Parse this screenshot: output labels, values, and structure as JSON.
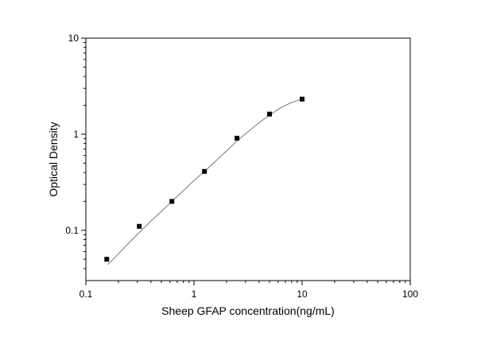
{
  "chart_data": {
    "type": "scatter",
    "title": "",
    "xlabel": "Sheep GFAP concentration(ng/mL)",
    "ylabel": "Optical Density",
    "xscale": "log",
    "yscale": "log",
    "xlim": [
      0.1,
      100
    ],
    "ylim": [
      0.03,
      10
    ],
    "x_ticks": [
      {
        "value": 0.1,
        "label": "0.1"
      },
      {
        "value": 1,
        "label": "1"
      },
      {
        "value": 10,
        "label": "10"
      },
      {
        "value": 100,
        "label": "100"
      }
    ],
    "y_ticks": [
      {
        "value": 0.1,
        "label": "0.1"
      },
      {
        "value": 1,
        "label": "1"
      },
      {
        "value": 10,
        "label": "10"
      }
    ],
    "grid": false,
    "legend": "none",
    "series": [
      {
        "marker": "square",
        "color": "#000000",
        "points": [
          {
            "x": 0.156,
            "y": 0.05
          },
          {
            "x": 0.312,
            "y": 0.11
          },
          {
            "x": 0.625,
            "y": 0.2
          },
          {
            "x": 1.25,
            "y": 0.41
          },
          {
            "x": 2.5,
            "y": 0.91
          },
          {
            "x": 5,
            "y": 1.62
          },
          {
            "x": 10,
            "y": 2.32
          }
        ]
      }
    ],
    "fit_curve": {
      "color": "#777777",
      "points": [
        {
          "x": 0.16,
          "y": 0.044
        },
        {
          "x": 0.2,
          "y": 0.057
        },
        {
          "x": 0.25,
          "y": 0.074
        },
        {
          "x": 0.312,
          "y": 0.095
        },
        {
          "x": 0.4,
          "y": 0.125
        },
        {
          "x": 0.5,
          "y": 0.158
        },
        {
          "x": 0.625,
          "y": 0.2
        },
        {
          "x": 0.8,
          "y": 0.26
        },
        {
          "x": 1,
          "y": 0.33
        },
        {
          "x": 1.25,
          "y": 0.41
        },
        {
          "x": 1.6,
          "y": 0.53
        },
        {
          "x": 2,
          "y": 0.67
        },
        {
          "x": 2.5,
          "y": 0.85
        },
        {
          "x": 3.2,
          "y": 1.07
        },
        {
          "x": 4,
          "y": 1.32
        },
        {
          "x": 5,
          "y": 1.58
        },
        {
          "x": 6.3,
          "y": 1.88
        },
        {
          "x": 8,
          "y": 2.14
        },
        {
          "x": 10,
          "y": 2.32
        }
      ]
    }
  }
}
